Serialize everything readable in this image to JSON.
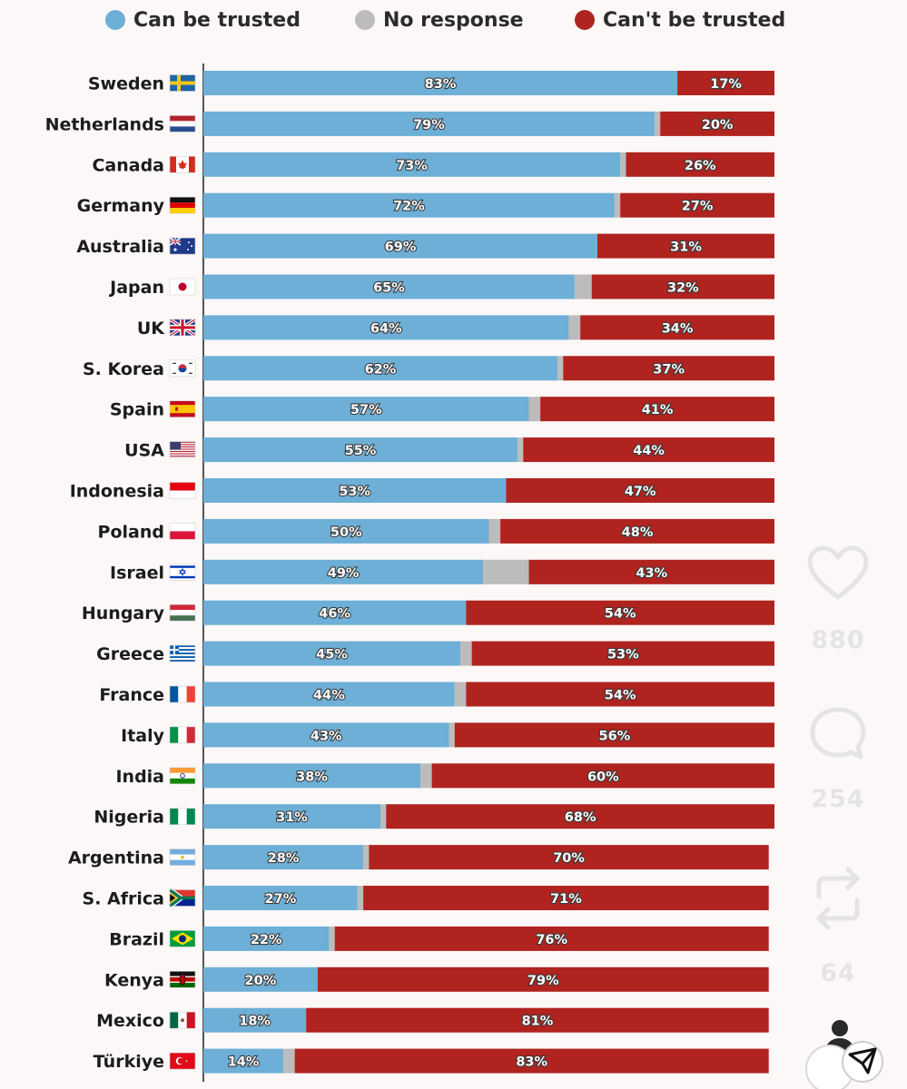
{
  "legend": {
    "trusted_label": "Can be trusted",
    "no_response_label": "No response",
    "untrusted_label": "Can't be trusted"
  },
  "colors": {
    "trusted": "#6dafd6",
    "no_response": "#bcbcbc",
    "untrusted": "#b0231f",
    "axis": "#2a2a2a"
  },
  "chart_data": {
    "type": "bar",
    "orientation": "horizontal",
    "stacked": true,
    "xlim": [
      0,
      100
    ],
    "unit": "%",
    "grid": false,
    "legend_position": "top",
    "categories": [
      "Sweden",
      "Netherlands",
      "Canada",
      "Germany",
      "Australia",
      "Japan",
      "UK",
      "S. Korea",
      "Spain",
      "USA",
      "Indonesia",
      "Poland",
      "Israel",
      "Hungary",
      "Greece",
      "France",
      "Italy",
      "India",
      "Nigeria",
      "Argentina",
      "S. Africa",
      "Brazil",
      "Kenya",
      "Mexico",
      "Türkiye"
    ],
    "series": [
      {
        "name": "Can be trusted",
        "values": [
          83,
          79,
          73,
          72,
          69,
          65,
          64,
          62,
          57,
          55,
          53,
          50,
          49,
          46,
          45,
          44,
          43,
          38,
          31,
          28,
          27,
          22,
          20,
          18,
          14
        ]
      },
      {
        "name": "No response",
        "values": [
          0,
          1,
          1,
          1,
          0,
          3,
          2,
          1,
          2,
          1,
          0,
          2,
          8,
          0,
          2,
          2,
          1,
          2,
          1,
          1,
          1,
          1,
          0,
          0,
          2
        ]
      },
      {
        "name": "Can't be trusted",
        "values": [
          17,
          20,
          26,
          27,
          31,
          32,
          34,
          37,
          41,
          44,
          47,
          48,
          43,
          54,
          53,
          54,
          56,
          60,
          68,
          70,
          71,
          76,
          79,
          81,
          83
        ]
      }
    ],
    "value_labels": {
      "trusted": [
        "83%",
        "79%",
        "73%",
        "72%",
        "69%",
        "65%",
        "64%",
        "62%",
        "57%",
        "55%",
        "53%",
        "50%",
        "49%",
        "46%",
        "45%",
        "44%",
        "43%",
        "38%",
        "31%",
        "28%",
        "27%",
        "22%",
        "20%",
        "18%",
        "14%"
      ],
      "untrusted": [
        "17%",
        "20%",
        "26%",
        "27%",
        "31%",
        "32%",
        "34%",
        "37%",
        "41%",
        "44%",
        "47%",
        "48%",
        "43%",
        "54%",
        "53%",
        "54%",
        "56%",
        "60%",
        "68%",
        "70%",
        "71%",
        "76%",
        "79%",
        "81%",
        "83%"
      ]
    },
    "flags": [
      "sweden",
      "netherlands",
      "canada",
      "germany",
      "australia",
      "japan",
      "uk",
      "south-korea",
      "spain",
      "usa",
      "indonesia",
      "poland",
      "israel",
      "hungary",
      "greece",
      "france",
      "italy",
      "india",
      "nigeria",
      "argentina",
      "south-africa",
      "brazil",
      "kenya",
      "mexico",
      "turkiye"
    ]
  },
  "side_actions": {
    "like_count": "880",
    "comment_count": "254",
    "repost_count": "64",
    "icons": [
      "heart-icon",
      "comment-icon",
      "repost-icon",
      "profile-icon",
      "share-icon"
    ]
  }
}
